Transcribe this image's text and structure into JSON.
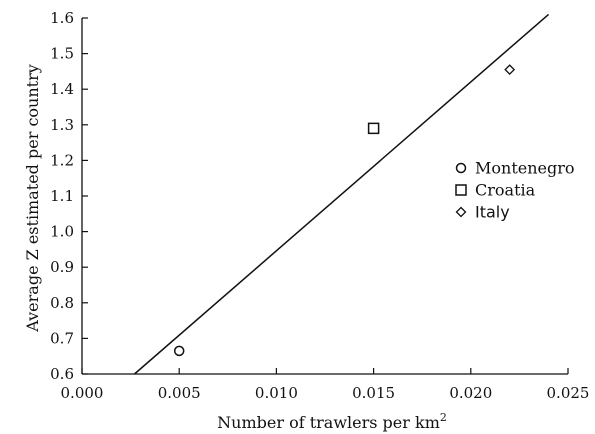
{
  "chart_data": {
    "type": "scatter",
    "xlabel": "Number of trawlers per km",
    "xlabel_superscript": "2",
    "ylabel": "Average Z estimated per country",
    "xlim": [
      0.0,
      0.025
    ],
    "ylim": [
      0.6,
      1.6
    ],
    "x_ticks": [
      "0.000",
      "0.005",
      "0.010",
      "0.015",
      "0.020",
      "0.025"
    ],
    "y_ticks": [
      "0.6",
      "0.7",
      "0.8",
      "0.9",
      "1.0",
      "1.1",
      "1.2",
      "1.3",
      "1.4",
      "1.5",
      "1.6"
    ],
    "grid": false,
    "legend_position": "right",
    "series": [
      {
        "name": "Montenegro",
        "marker": "circle",
        "x": 0.005,
        "y": 0.665
      },
      {
        "name": "Croatia",
        "marker": "square",
        "x": 0.015,
        "y": 1.29
      },
      {
        "name": "Italy",
        "marker": "diamond",
        "x": 0.022,
        "y": 1.455
      }
    ],
    "fit_line": {
      "x": [
        0.0027,
        0.024
      ],
      "y": [
        0.6,
        1.61
      ]
    }
  }
}
